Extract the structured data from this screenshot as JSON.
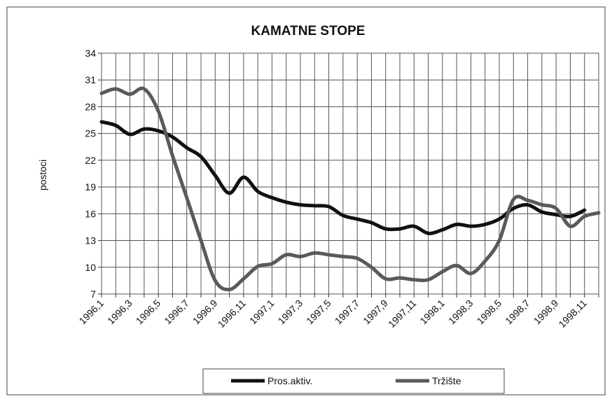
{
  "chart_data": {
    "type": "line",
    "title": "KAMATNE STOPE",
    "y_label": "postoci",
    "categories": [
      "1996,1",
      null,
      "1996,3",
      null,
      "1996,5",
      null,
      "1996,7",
      null,
      "1996,9",
      null,
      "1996,11",
      null,
      "1997,1",
      null,
      "1997,3",
      null,
      "1997,5",
      null,
      "1997,7",
      null,
      "1997,9",
      null,
      "1997,11",
      null,
      "1998,1",
      null,
      "1998,3",
      null,
      "1998,5",
      null,
      "1998,7",
      null,
      "1998,9",
      null,
      "1998,11",
      null
    ],
    "series": [
      {
        "name": "Pros.aktiv.",
        "color": "#111111",
        "values": [
          26.3,
          25.9,
          24.9,
          25.5,
          25.3,
          24.6,
          23.4,
          22.4,
          20.3,
          18.3,
          20.1,
          18.5,
          17.8,
          17.3,
          17.0,
          16.9,
          16.8,
          15.8,
          15.4,
          15.0,
          14.3,
          14.3,
          14.6,
          13.8,
          14.2,
          14.8,
          14.6,
          14.8,
          15.4,
          16.6,
          17.0,
          16.2,
          15.9,
          15.7,
          16.4,
          null
        ]
      },
      {
        "name": "Tržište",
        "color": "#5a5a5a",
        "values": [
          29.5,
          30.0,
          29.4,
          30.0,
          27.5,
          22.5,
          17.8,
          13.0,
          8.5,
          7.5,
          8.7,
          10.1,
          10.4,
          11.4,
          11.2,
          11.6,
          11.4,
          11.2,
          11.0,
          10.0,
          8.7,
          8.8,
          8.6,
          8.6,
          9.5,
          10.2,
          9.3,
          10.7,
          13.0,
          17.6,
          17.5,
          17.0,
          16.6,
          14.6,
          15.7,
          16.1
        ]
      }
    ],
    "ylim": [
      7,
      34
    ],
    "yticks": [
      7,
      10,
      13,
      16,
      19,
      22,
      25,
      28,
      31,
      34
    ],
    "grid": true,
    "legend": "bottom"
  }
}
